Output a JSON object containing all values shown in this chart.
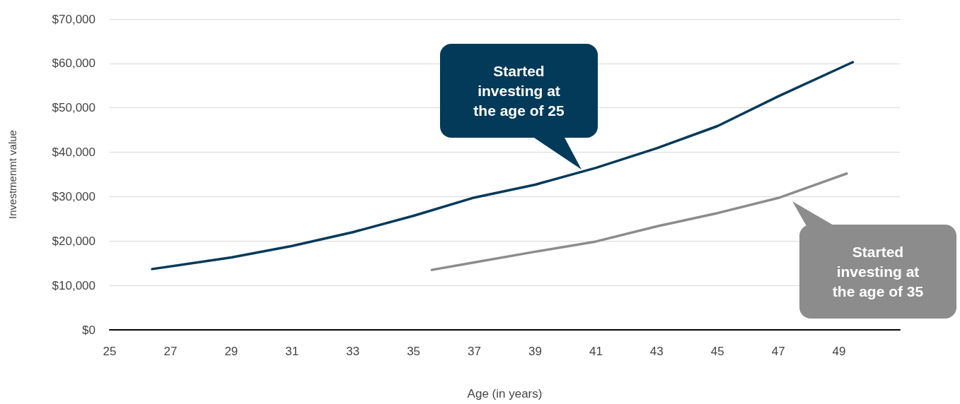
{
  "chart_data": {
    "type": "line",
    "xlabel": "Age (in years)",
    "ylabel": "Investmenmt value",
    "xlim": [
      25,
      51
    ],
    "xticks": [
      25,
      27,
      29,
      31,
      33,
      35,
      37,
      39,
      41,
      43,
      45,
      47,
      49
    ],
    "ylim": [
      0,
      70000
    ],
    "yticks": [
      {
        "value": 0,
        "label": "$0"
      },
      {
        "value": 10000,
        "label": "$10,000"
      },
      {
        "value": 20000,
        "label": "$20,000"
      },
      {
        "value": 30000,
        "label": "$30,000"
      },
      {
        "value": 40000,
        "label": "$40,000"
      },
      {
        "value": 50000,
        "label": "$50,000"
      },
      {
        "value": 60000,
        "label": "$60,000"
      },
      {
        "value": 70000,
        "label": "$70,000"
      }
    ],
    "grid": "y",
    "marker": "none",
    "line_style": "solid",
    "series": [
      {
        "color": "#033a5a",
        "x": [
          26.4,
          29,
          31,
          33,
          35,
          37,
          39,
          41,
          43,
          45,
          47,
          49.45
        ],
        "values": [
          13700,
          16300,
          18900,
          22000,
          25700,
          29800,
          32700,
          36500,
          40900,
          45900,
          52600,
          60300
        ]
      },
      {
        "color": "#8c8c8c",
        "x": [
          35.6,
          37,
          39,
          41,
          43,
          45,
          47,
          49.25
        ],
        "values": [
          13500,
          15200,
          17600,
          19900,
          23300,
          26300,
          29700,
          35200
        ]
      }
    ],
    "annotations": [
      "Started investing at the age of 25",
      "Started investing at the age of 35"
    ]
  }
}
